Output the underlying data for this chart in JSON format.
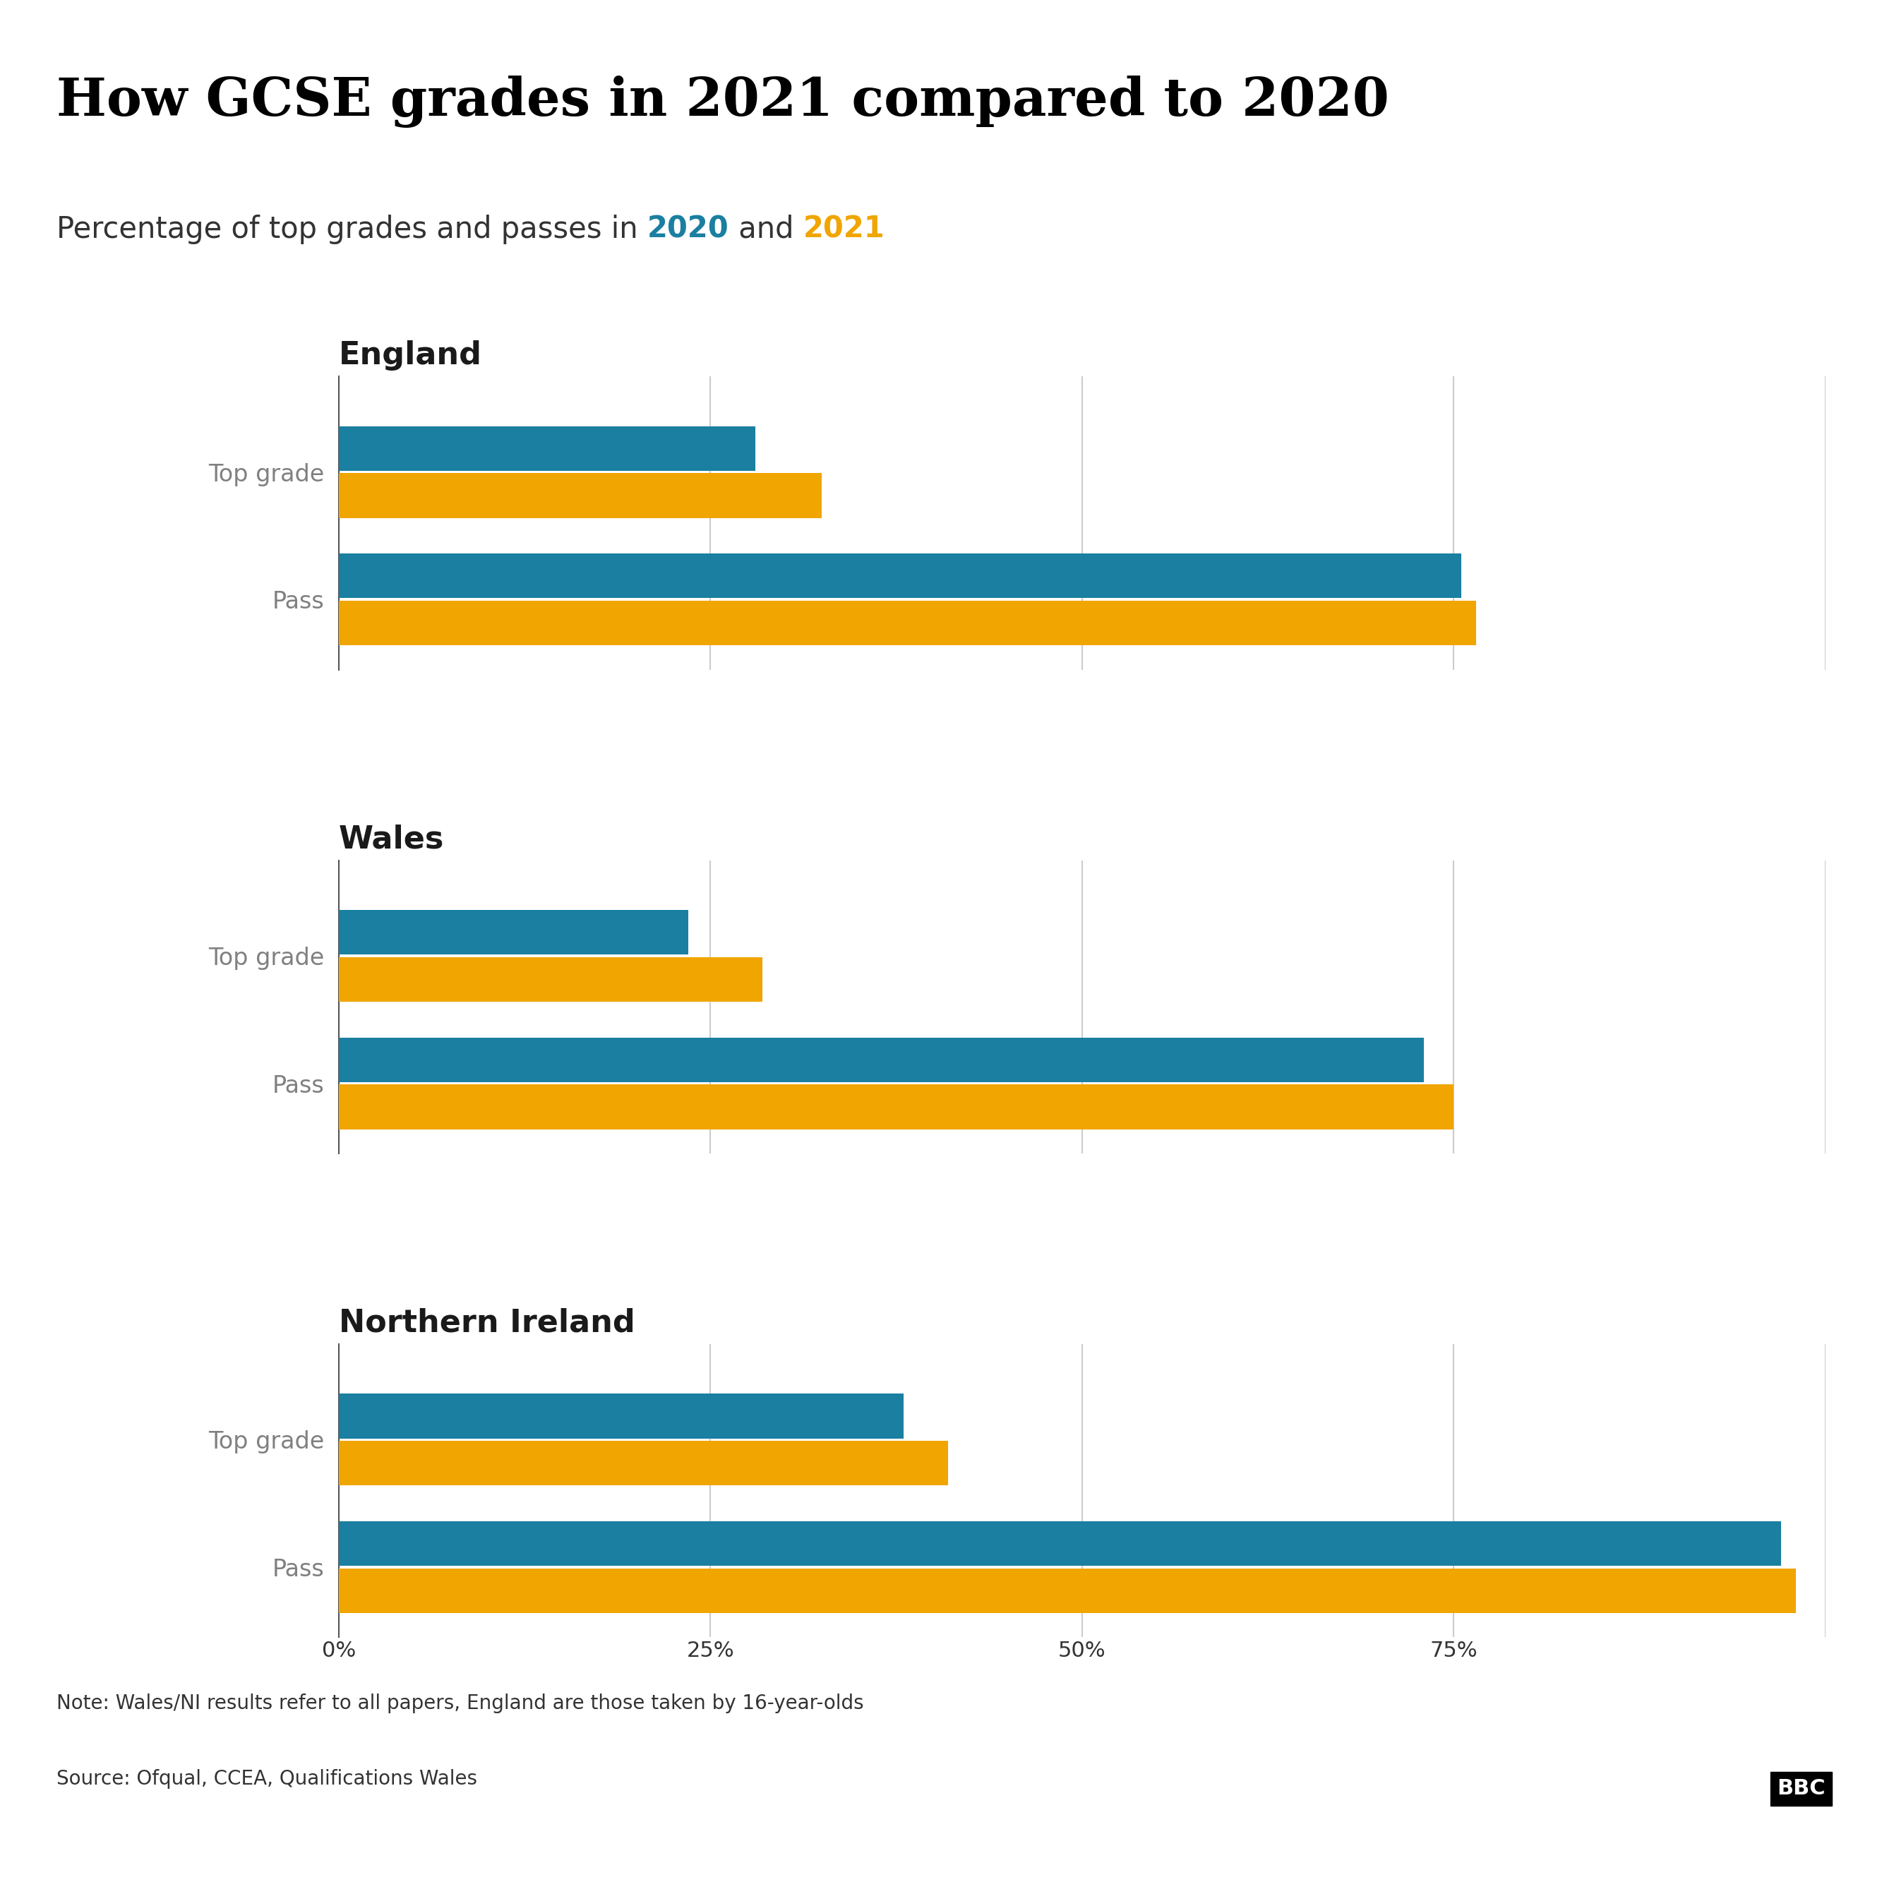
{
  "title": "How GCSE grades in 2021 compared to 2020",
  "subtitle_parts": [
    "Percentage of top grades and passes in ",
    "2020",
    " and ",
    "2021"
  ],
  "subtitle_colors": [
    "#333333",
    "#1a7fa0",
    "#333333",
    "#f0a500"
  ],
  "color_2020": "#1a7fa0",
  "color_2021": "#f0a500",
  "regions": [
    "England",
    "Wales",
    "Northern Ireland"
  ],
  "categories": [
    "Top grade",
    "Pass"
  ],
  "data": {
    "England": {
      "Top grade": {
        "2020": 28.0,
        "2021": 32.5
      },
      "Pass": {
        "2020": 75.5,
        "2021": 76.5
      }
    },
    "Wales": {
      "Top grade": {
        "2020": 23.5,
        "2021": 28.5
      },
      "Pass": {
        "2020": 73.0,
        "2021": 75.0
      }
    },
    "Northern Ireland": {
      "Top grade": {
        "2020": 38.0,
        "2021": 41.0
      },
      "Pass": {
        "2020": 97.0,
        "2021": 98.0
      }
    }
  },
  "xlim": [
    0,
    100
  ],
  "xticks": [
    0,
    25,
    50,
    75,
    100
  ],
  "xticklabels": [
    "0%",
    "25%",
    "50%",
    "75%",
    ""
  ],
  "note": "Note: Wales/NI results refer to all papers, England are those taken by 16-year-olds",
  "source": "Source: Ofqual, CCEA, Qualifications Wales",
  "background_color": "#ffffff",
  "bar_height": 0.35,
  "region_label_color": "#1a1a1a",
  "category_label_color": "#808080",
  "grid_color": "#cccccc"
}
